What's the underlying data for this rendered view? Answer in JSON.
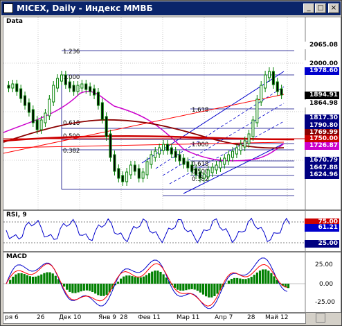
{
  "window": {
    "title": "MICEX, Daily - Индекс ММВБ",
    "buttons": {
      "minimize": "_",
      "maximize": "□",
      "close": "×"
    }
  },
  "main_panel": {
    "label": "Data",
    "price_axis": [
      "2065.08",
      "2000.00",
      "1978.60",
      "1894.91",
      "1864.98",
      "1817.30",
      "1790.80",
      "1769.99",
      "1750.00",
      "1726.87",
      "1670.79",
      "1647.88",
      "1624.96"
    ],
    "price_colors": {
      "1978.60": "#0000cc",
      "1894.91": "#ffffff",
      "1750.00": "#cc0000"
    },
    "fib_labels": [
      "1.236",
      "1.000",
      "0.618",
      "0.500",
      "0.382",
      "1.618",
      "1.000",
      "0.618",
      "0.500",
      "0.382"
    ]
  },
  "rsi_panel": {
    "label": "RSI, 9",
    "values": [
      "75.00",
      "61.21",
      "25.00"
    ]
  },
  "macd_panel": {
    "label": "MACD",
    "values": [
      "25.00",
      "0.00",
      "-25.00"
    ]
  },
  "x_axis": {
    "labels": [
      "ря 6",
      "26",
      "Дек 10",
      "Янв 9",
      "28",
      "Фев 11",
      "Мар 11",
      "Апр 7",
      "28",
      "Май 12"
    ]
  },
  "colors": {
    "title_bg": "#0a246a",
    "candle": "#008000",
    "ma_magenta": "#cc00cc",
    "ma_dark_red": "#8b0000",
    "trend_red": "#ff0000",
    "channel_blue": "#0000cc",
    "macd_hist": "#008000"
  }
}
